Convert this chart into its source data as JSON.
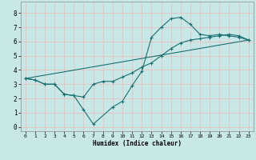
{
  "title": "",
  "xlabel": "Humidex (Indice chaleur)",
  "ylabel": "",
  "background_color": "#c8e8e8",
  "grid_color": "#f0b8b8",
  "line_color": "#1a7070",
  "xlim": [
    -0.5,
    23.5
  ],
  "ylim": [
    -0.3,
    8.8
  ],
  "xticks": [
    0,
    1,
    2,
    3,
    4,
    5,
    6,
    7,
    8,
    9,
    10,
    11,
    12,
    13,
    14,
    15,
    16,
    17,
    18,
    19,
    20,
    21,
    22,
    23
  ],
  "yticks": [
    0,
    1,
    2,
    3,
    4,
    5,
    6,
    7,
    8
  ],
  "line1_x": [
    0,
    1,
    2,
    3,
    4,
    5,
    6,
    7,
    9,
    10,
    11,
    12,
    13,
    14,
    15,
    16,
    17,
    18,
    19,
    20,
    21,
    22,
    23
  ],
  "line1_y": [
    3.4,
    3.3,
    3.0,
    3.0,
    2.3,
    2.2,
    1.2,
    0.2,
    1.4,
    1.8,
    2.9,
    3.9,
    6.3,
    7.0,
    7.6,
    7.7,
    7.2,
    6.5,
    6.4,
    6.5,
    6.4,
    6.3,
    6.1
  ],
  "line2_x": [
    0,
    1,
    2,
    3,
    4,
    5,
    6,
    7,
    8,
    9,
    10,
    11,
    12,
    13,
    14,
    15,
    16,
    17,
    18,
    19,
    20,
    21,
    22,
    23
  ],
  "line2_y": [
    3.4,
    3.3,
    3.0,
    3.0,
    2.3,
    2.2,
    2.1,
    3.0,
    3.2,
    3.2,
    3.5,
    3.8,
    4.2,
    4.5,
    5.0,
    5.5,
    5.9,
    6.1,
    6.2,
    6.3,
    6.4,
    6.5,
    6.4,
    6.1
  ],
  "line3_x": [
    0,
    23
  ],
  "line3_y": [
    3.4,
    6.1
  ]
}
